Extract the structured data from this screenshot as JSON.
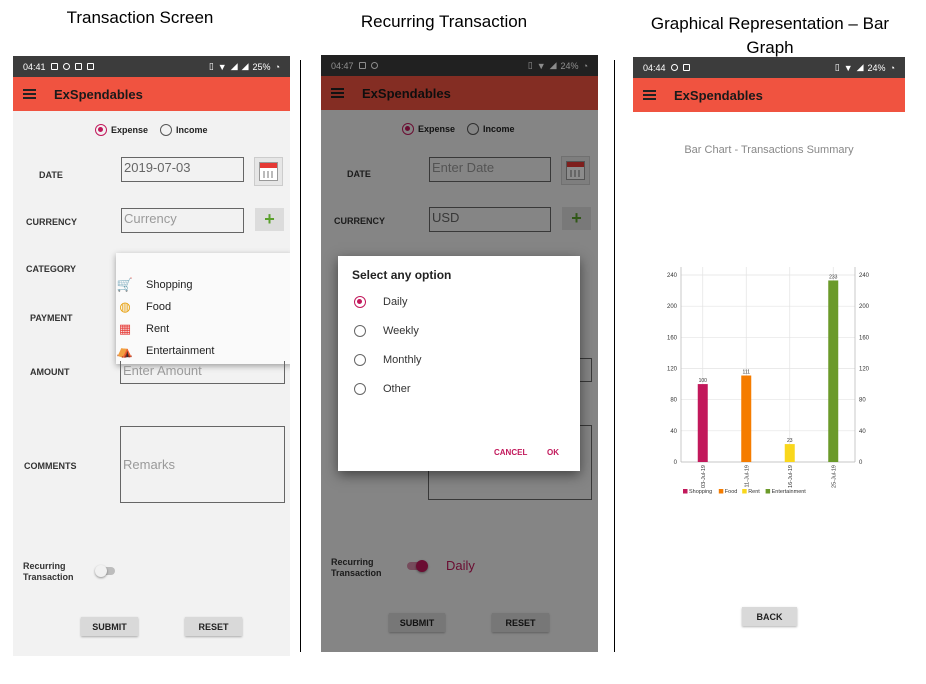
{
  "captions": {
    "transaction": "Transaction Screen",
    "recurring": "Recurring Transaction",
    "graph": "Graphical Representation – Bar Graph"
  },
  "colors": {
    "appbar": "#f05340",
    "accent": "#c2185b",
    "shopping": "#c2185b",
    "food": "#f57c00",
    "rent": "#f9d71c",
    "entertainment": "#6b9a2a"
  },
  "screen1": {
    "status": {
      "time": "04:41",
      "battery": "25%"
    },
    "app_title": "ExSpendables",
    "type_options": {
      "expense": "Expense",
      "income": "Income"
    },
    "labels": {
      "date": "DATE",
      "currency": "CURRENCY",
      "category": "CATEGORY",
      "payment": "PAYMENT",
      "amount": "AMOUNT",
      "comments": "COMMENTS",
      "recurring_line1": "Recurring",
      "recurring_line2": "Transaction"
    },
    "date_value": "2019-07-03",
    "currency_placeholder": "Currency",
    "amount_placeholder": "Enter Amount",
    "remarks_placeholder": "Remarks",
    "category_options": [
      {
        "label": "Shopping",
        "icon": "shopping-cart-icon"
      },
      {
        "label": "Food",
        "icon": "food-icon"
      },
      {
        "label": "Rent",
        "icon": "building-icon"
      },
      {
        "label": "Entertainment",
        "icon": "circus-tent-icon"
      }
    ],
    "buttons": {
      "submit": "SUBMIT",
      "reset": "RESET"
    }
  },
  "screen2": {
    "status": {
      "time": "04:47",
      "battery": "24%"
    },
    "app_title": "ExSpendables",
    "type_options": {
      "expense": "Expense",
      "income": "Income"
    },
    "labels": {
      "date": "DATE",
      "currency": "CURRENCY",
      "recurring_line1": "Recurring",
      "recurring_line2": "Transaction"
    },
    "date_placeholder": "Enter Date",
    "currency_value": "USD",
    "recurring_value": "Daily",
    "dialog": {
      "title": "Select any option",
      "options": [
        "Daily",
        "Weekly",
        "Monthly",
        "Other"
      ],
      "selected": "Daily",
      "cancel": "CANCEL",
      "ok": "OK"
    },
    "buttons": {
      "submit": "SUBMIT",
      "reset": "RESET"
    }
  },
  "screen3": {
    "status": {
      "time": "04:44",
      "battery": "24%"
    },
    "app_title": "ExSpendables",
    "back_button": "BACK"
  },
  "chart_data": {
    "type": "bar",
    "title": "Bar Chart - Transactions Summary",
    "categories": [
      "03-Jul-19",
      "11-Jul-19",
      "16-Jul-19",
      "25-Jul-19"
    ],
    "values": [
      100,
      111,
      23,
      233
    ],
    "data_labels": [
      "100",
      "111",
      "23",
      "233"
    ],
    "bar_series": [
      "Shopping",
      "Food",
      "Rent",
      "Entertainment"
    ],
    "legend": [
      "Shopping",
      "Food",
      "Rent",
      "Entertainment"
    ],
    "yticks": [
      "0",
      "40",
      "80",
      "120",
      "160",
      "200",
      "240"
    ],
    "ylim": [
      0,
      240
    ],
    "grid": true,
    "legend_position": "bottom-left"
  }
}
